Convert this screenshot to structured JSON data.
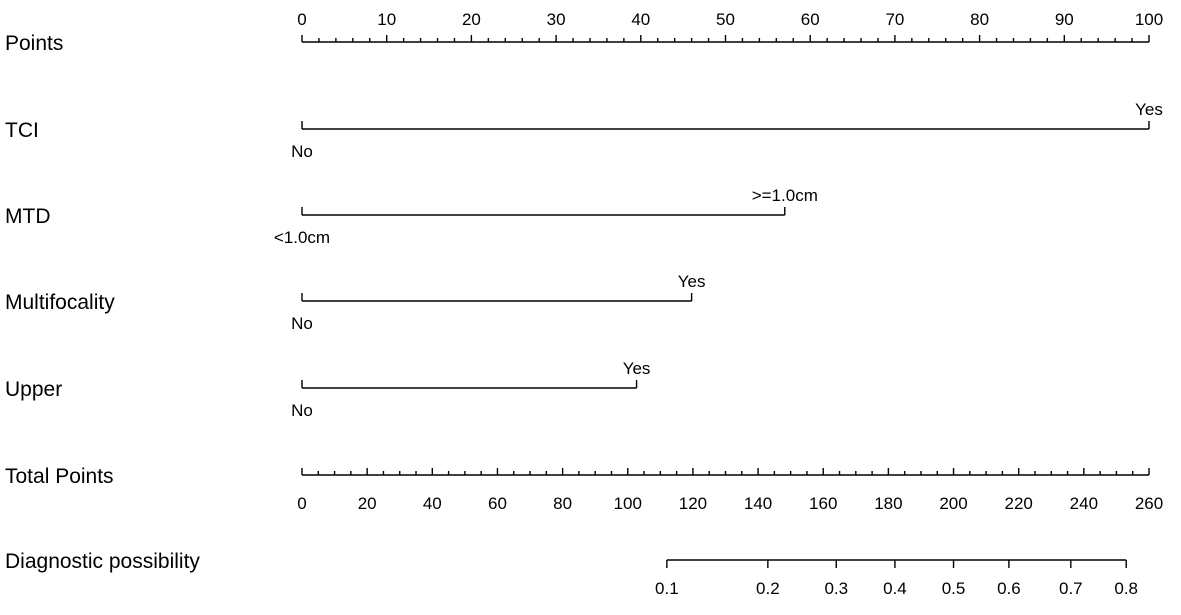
{
  "chart_data": {
    "type": "nomogram",
    "points_axis": {
      "label": "Points",
      "range": [
        0,
        100
      ],
      "major_ticks": [
        0,
        10,
        20,
        30,
        40,
        50,
        60,
        70,
        80,
        90,
        100
      ],
      "minor_step": 2
    },
    "variables": [
      {
        "name": "TCI",
        "levels": [
          {
            "label": "No",
            "points": 0
          },
          {
            "label": "Yes",
            "points": 100
          }
        ]
      },
      {
        "name": "MTD",
        "levels": [
          {
            "label": "<1.0cm",
            "points": 0
          },
          {
            "label": ">=1.0cm",
            "points": 57
          }
        ]
      },
      {
        "name": "Multifocality",
        "levels": [
          {
            "label": "No",
            "points": 0
          },
          {
            "label": "Yes",
            "points": 46
          }
        ]
      },
      {
        "name": "Upper",
        "levels": [
          {
            "label": "No",
            "points": 0
          },
          {
            "label": "Yes",
            "points": 39.5
          }
        ]
      }
    ],
    "total_points_axis": {
      "label": "Total Points",
      "range": [
        0,
        260
      ],
      "major_ticks": [
        0,
        20,
        40,
        60,
        80,
        100,
        120,
        140,
        160,
        180,
        200,
        220,
        240,
        260
      ],
      "minor_step": 5
    },
    "probability_axis": {
      "label": "Diagnostic possibility",
      "ticks": [
        {
          "label": "0.1",
          "total_points": 112
        },
        {
          "label": "0.2",
          "total_points": 143
        },
        {
          "label": "0.3",
          "total_points": 164
        },
        {
          "label": "0.4",
          "total_points": 182
        },
        {
          "label": "0.5",
          "total_points": 200
        },
        {
          "label": "0.6",
          "total_points": 217
        },
        {
          "label": "0.7",
          "total_points": 236
        },
        {
          "label": "0.8",
          "total_points": 253
        }
      ]
    }
  }
}
